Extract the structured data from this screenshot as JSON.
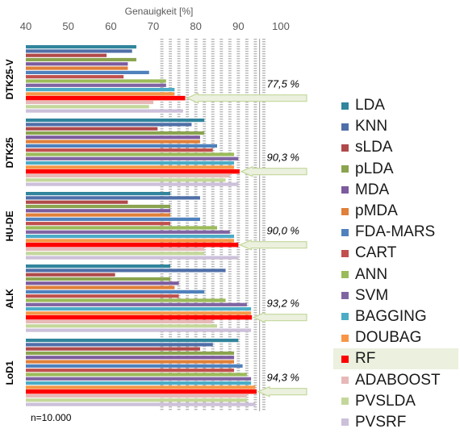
{
  "chart_data": {
    "type": "bar",
    "orientation": "horizontal",
    "xlabel": "Genauigkeit [%]",
    "xlim": [
      40,
      100
    ],
    "xticks": [
      "40",
      "50",
      "60",
      "70",
      "80",
      "90",
      "100"
    ],
    "grid": true,
    "legend_position": "right",
    "note": "n=10.000",
    "groups": [
      "DTK25-V",
      "DTK25",
      "HU-DE",
      "ALK",
      "LoD1"
    ],
    "series": [
      {
        "name": "LDA",
        "color": "#31859c",
        "values": [
          66,
          82,
          74,
          74,
          90
        ]
      },
      {
        "name": "KNN",
        "color": "#4f6fa8",
        "values": [
          65,
          79,
          81,
          87,
          84
        ]
      },
      {
        "name": "sLDA",
        "color": "#b04a4a",
        "values": [
          59,
          71,
          64,
          61,
          81
        ]
      },
      {
        "name": "pLDA",
        "color": "#8aa44f",
        "values": [
          66,
          82,
          74,
          74,
          89
        ]
      },
      {
        "name": "MDA",
        "color": "#7c5b9e",
        "values": [
          64,
          81,
          74,
          76,
          89
        ]
      },
      {
        "name": "pMDA",
        "color": "#e0803a",
        "values": [
          64,
          81,
          74,
          75,
          89
        ]
      },
      {
        "name": "FDA-MARS",
        "color": "#4f81bd",
        "values": [
          69,
          85,
          81,
          82,
          91
        ]
      },
      {
        "name": "CART",
        "color": "#c0504d",
        "values": [
          63,
          84,
          74,
          76,
          89
        ]
      },
      {
        "name": "ANN",
        "color": "#9bbb59",
        "values": [
          73,
          89,
          85,
          87,
          92
        ]
      },
      {
        "name": "SVM",
        "color": "#8064a2",
        "values": [
          73,
          90,
          88,
          92,
          93
        ]
      },
      {
        "name": "BAGGING",
        "color": "#4bacc6",
        "values": [
          75,
          89,
          89,
          93,
          93
        ]
      },
      {
        "name": "DOUBAG",
        "color": "#f79646",
        "values": [
          75,
          89,
          89,
          93,
          94
        ]
      },
      {
        "name": "RF",
        "color": "#ff0000",
        "values": [
          77.5,
          90.3,
          90.0,
          93.2,
          94.3
        ]
      },
      {
        "name": "ADABOOST",
        "color": "#e6b9b8",
        "values": [
          70,
          88,
          82,
          84,
          92
        ]
      },
      {
        "name": "PVSLDA",
        "color": "#c4d79b",
        "values": [
          69,
          87,
          82,
          85,
          92
        ]
      },
      {
        "name": "PVSRF",
        "color": "#ccc0da",
        "values": [
          77,
          90,
          90,
          93,
          94
        ]
      }
    ],
    "annotations": [
      {
        "group": "DTK25-V",
        "text": "77,5 %",
        "value": 77.5
      },
      {
        "group": "DTK25",
        "text": "90,3 %",
        "value": 90.3
      },
      {
        "group": "HU-DE",
        "text": "90,0 %",
        "value": 90.0
      },
      {
        "group": "ALK",
        "text": "93,2 %",
        "value": 93.2
      },
      {
        "group": "LoD1",
        "text": "94,3 %",
        "value": 94.3
      }
    ],
    "highlight_series": "RF"
  }
}
